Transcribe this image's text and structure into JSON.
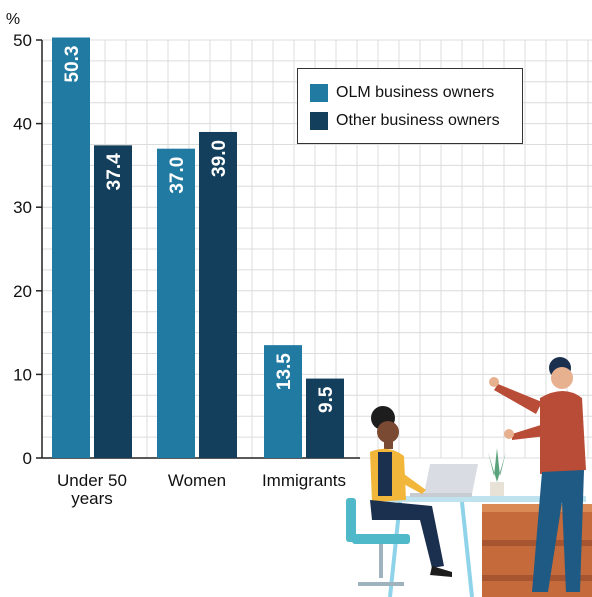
{
  "chart_data": {
    "type": "bar",
    "unit_label": "%",
    "categories": [
      "Under 50 years",
      "Women",
      "Immigrants"
    ],
    "category_lines": [
      [
        "Under 50",
        "years"
      ],
      [
        "Women"
      ],
      [
        "Immigrants"
      ]
    ],
    "series": [
      {
        "name": "OLM business owners",
        "color": "#217aa1",
        "values": [
          50.3,
          37.0,
          13.5
        ],
        "labels": [
          "50.3",
          "37.0",
          "13.5"
        ]
      },
      {
        "name": "Other business owners",
        "color": "#143f5c",
        "values": [
          37.4,
          39.0,
          9.5
        ],
        "labels": [
          "37.4",
          "39.0",
          "9.5"
        ]
      }
    ],
    "ylim": [
      0,
      50
    ],
    "yticks": [
      0,
      10,
      20,
      30,
      40,
      50
    ],
    "grid": true,
    "legend_position": "top-right"
  }
}
